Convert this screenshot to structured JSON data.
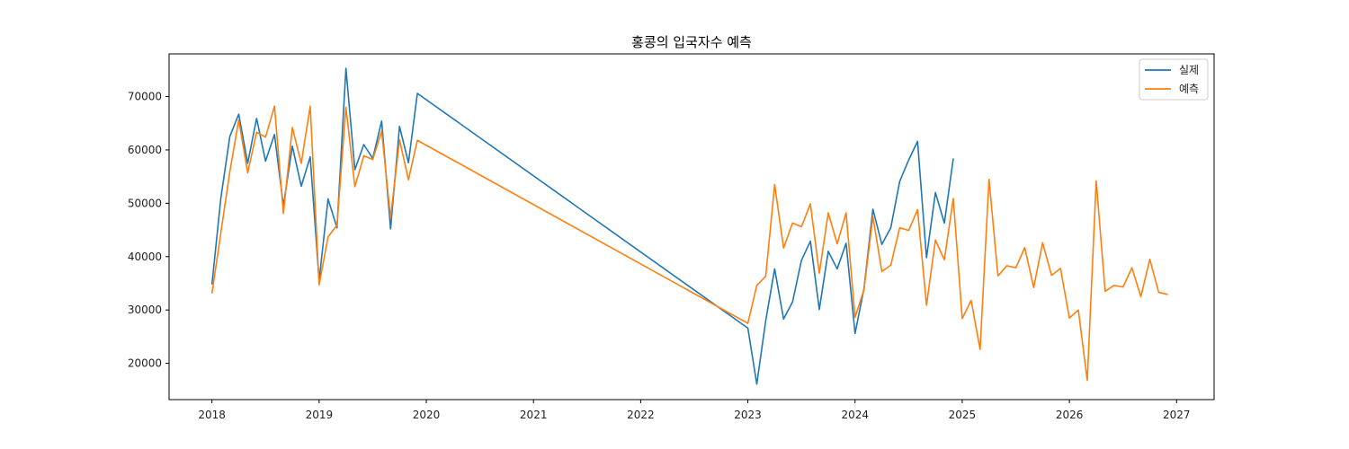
{
  "chart_data": {
    "type": "line",
    "title": "홍콩의 입국자수 예측",
    "xlabel": "",
    "ylabel": "",
    "xlim": [
      2017.6,
      2027.35
    ],
    "ylim": [
      13200,
      78000
    ],
    "x_ticks": [
      2018,
      2019,
      2020,
      2021,
      2022,
      2023,
      2024,
      2025,
      2026,
      2027
    ],
    "x_tick_labels": [
      "2018",
      "2019",
      "2020",
      "2021",
      "2022",
      "2023",
      "2024",
      "2025",
      "2026",
      "2027"
    ],
    "y_ticks": [
      20000,
      30000,
      40000,
      50000,
      60000,
      70000
    ],
    "y_tick_labels": [
      "20000",
      "30000",
      "40000",
      "50000",
      "60000",
      "70000"
    ],
    "grid": false,
    "legend_position": "top-right",
    "series": [
      {
        "name": "실제",
        "color": "#1f77b4",
        "points": [
          [
            "2018-01",
            34800
          ],
          [
            "2018-02",
            51000
          ],
          [
            "2018-03",
            62500
          ],
          [
            "2018-04",
            66700
          ],
          [
            "2018-05",
            57500
          ],
          [
            "2018-06",
            65900
          ],
          [
            "2018-07",
            57900
          ],
          [
            "2018-08",
            62900
          ],
          [
            "2018-09",
            49500
          ],
          [
            "2018-10",
            60700
          ],
          [
            "2018-11",
            53200
          ],
          [
            "2018-12",
            58700
          ],
          [
            "2019-01",
            35500
          ],
          [
            "2019-02",
            50800
          ],
          [
            "2019-03",
            45400
          ],
          [
            "2019-04",
            75300
          ],
          [
            "2019-05",
            56300
          ],
          [
            "2019-06",
            61000
          ],
          [
            "2019-07",
            58400
          ],
          [
            "2019-08",
            65400
          ],
          [
            "2019-09",
            45200
          ],
          [
            "2019-10",
            64400
          ],
          [
            "2019-11",
            57600
          ],
          [
            "2019-12",
            70600
          ],
          [
            "2023-01",
            26600
          ],
          [
            "2023-02",
            16100
          ],
          [
            "2023-03",
            28000
          ],
          [
            "2023-04",
            37700
          ],
          [
            "2023-05",
            28300
          ],
          [
            "2023-06",
            31500
          ],
          [
            "2023-07",
            39300
          ],
          [
            "2023-08",
            42900
          ],
          [
            "2023-09",
            30100
          ],
          [
            "2023-10",
            41000
          ],
          [
            "2023-11",
            37700
          ],
          [
            "2023-12",
            42500
          ],
          [
            "2024-01",
            25600
          ],
          [
            "2024-02",
            34000
          ],
          [
            "2024-03",
            48900
          ],
          [
            "2024-04",
            42300
          ],
          [
            "2024-05",
            45400
          ],
          [
            "2024-06",
            54100
          ],
          [
            "2024-07",
            58100
          ],
          [
            "2024-08",
            61600
          ],
          [
            "2024-09",
            39800
          ],
          [
            "2024-10",
            52000
          ],
          [
            "2024-11",
            46300
          ],
          [
            "2024-12",
            58400
          ]
        ]
      },
      {
        "name": "예측",
        "color": "#ff7f0e",
        "points": [
          [
            "2018-01",
            33100
          ],
          [
            "2018-02",
            44500
          ],
          [
            "2018-03",
            55900
          ],
          [
            "2018-04",
            65600
          ],
          [
            "2018-05",
            55700
          ],
          [
            "2018-06",
            63300
          ],
          [
            "2018-07",
            62400
          ],
          [
            "2018-08",
            68200
          ],
          [
            "2018-09",
            48100
          ],
          [
            "2018-10",
            64200
          ],
          [
            "2018-11",
            57500
          ],
          [
            "2018-12",
            68200
          ],
          [
            "2019-01",
            34700
          ],
          [
            "2019-02",
            43700
          ],
          [
            "2019-03",
            45900
          ],
          [
            "2019-04",
            68000
          ],
          [
            "2019-05",
            53100
          ],
          [
            "2019-06",
            58900
          ],
          [
            "2019-07",
            58200
          ],
          [
            "2019-08",
            63500
          ],
          [
            "2019-09",
            47300
          ],
          [
            "2019-10",
            61900
          ],
          [
            "2019-11",
            54400
          ],
          [
            "2019-12",
            61800
          ],
          [
            "2023-01",
            27500
          ],
          [
            "2023-02",
            34600
          ],
          [
            "2023-03",
            36300
          ],
          [
            "2023-04",
            53500
          ],
          [
            "2023-05",
            41600
          ],
          [
            "2023-06",
            46300
          ],
          [
            "2023-07",
            45600
          ],
          [
            "2023-08",
            49900
          ],
          [
            "2023-09",
            36900
          ],
          [
            "2023-10",
            48200
          ],
          [
            "2023-11",
            42400
          ],
          [
            "2023-12",
            48200
          ],
          [
            "2024-01",
            28600
          ],
          [
            "2024-02",
            33800
          ],
          [
            "2024-03",
            47500
          ],
          [
            "2024-04",
            37200
          ],
          [
            "2024-05",
            38400
          ],
          [
            "2024-06",
            45400
          ],
          [
            "2024-07",
            44900
          ],
          [
            "2024-08",
            48800
          ],
          [
            "2024-09",
            30900
          ],
          [
            "2024-10",
            43100
          ],
          [
            "2024-11",
            39400
          ],
          [
            "2024-12",
            50900
          ],
          [
            "2025-01",
            28400
          ],
          [
            "2025-02",
            31800
          ],
          [
            "2025-03",
            22600
          ],
          [
            "2025-04",
            54500
          ],
          [
            "2025-05",
            36400
          ],
          [
            "2025-06",
            38300
          ],
          [
            "2025-07",
            37900
          ],
          [
            "2025-08",
            41700
          ],
          [
            "2025-09",
            34200
          ],
          [
            "2025-10",
            42600
          ],
          [
            "2025-11",
            36500
          ],
          [
            "2025-12",
            37800
          ],
          [
            "2026-01",
            28500
          ],
          [
            "2026-02",
            30000
          ],
          [
            "2026-03",
            16800
          ],
          [
            "2026-04",
            54200
          ],
          [
            "2026-05",
            33500
          ],
          [
            "2026-06",
            34600
          ],
          [
            "2026-07",
            34300
          ],
          [
            "2026-08",
            37900
          ],
          [
            "2026-09",
            32500
          ],
          [
            "2026-10",
            39500
          ],
          [
            "2026-11",
            33300
          ],
          [
            "2026-12",
            32900
          ]
        ]
      }
    ]
  }
}
